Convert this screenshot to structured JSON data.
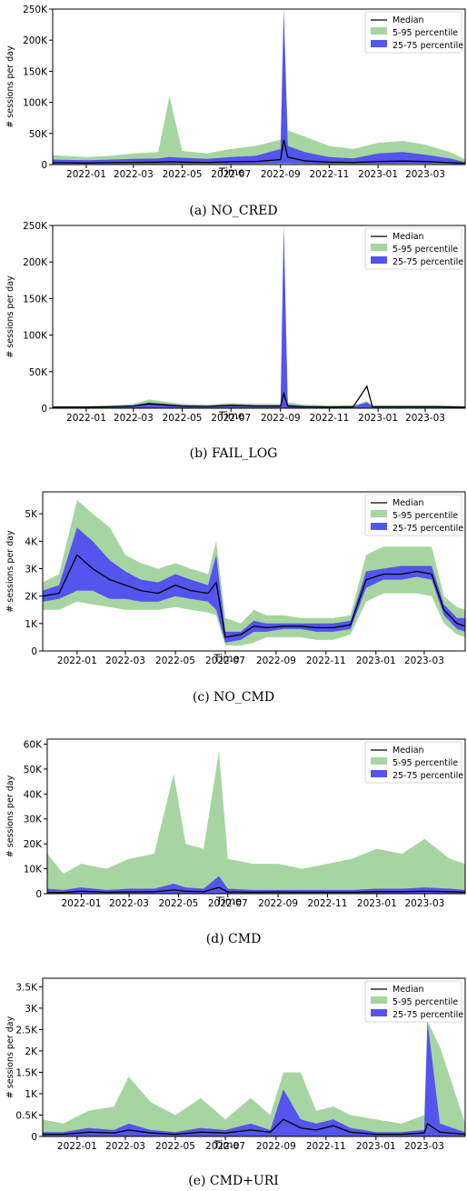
{
  "chart_data": [
    {
      "type": "area",
      "caption": "(a)  NO_CRED",
      "xlabel": "Time",
      "ylabel": "# sessions per day",
      "ymax": 250000,
      "yticks": [
        0,
        50000,
        100000,
        150000,
        200000,
        250000
      ],
      "ytick_labels": [
        "0",
        "50K",
        "100K",
        "150K",
        "200K",
        "250K"
      ],
      "x_tick_labels": [
        "2022-01",
        "2022-03",
        "2022-05",
        "2022-07",
        "2022-09",
        "2022-11",
        "2023-01",
        "2023-03"
      ],
      "legend": [
        "Median",
        "5-95 percentile",
        "25-75 percentile"
      ],
      "legend_position": "top-right",
      "x_dates": [
        "2021-11-20",
        "2022-01-01",
        "2022-02-01",
        "2022-03-01",
        "2022-04-01",
        "2022-04-15",
        "2022-05-01",
        "2022-06-01",
        "2022-07-01",
        "2022-08-01",
        "2022-09-01",
        "2022-09-05",
        "2022-09-10",
        "2022-10-01",
        "2022-11-01",
        "2022-12-01",
        "2023-01-01",
        "2023-02-01",
        "2023-03-01",
        "2023-04-01",
        "2023-04-20"
      ],
      "series": [
        {
          "name": "5-95 percentile",
          "low": [
            0,
            0,
            0,
            0,
            0,
            0,
            0,
            0,
            0,
            0,
            0,
            0,
            0,
            0,
            0,
            0,
            0,
            0,
            0,
            0,
            0
          ],
          "high": [
            15000,
            12000,
            14000,
            18000,
            20000,
            110000,
            22000,
            18000,
            25000,
            30000,
            40000,
            250000,
            55000,
            45000,
            30000,
            25000,
            35000,
            38000,
            32000,
            20000,
            8000
          ]
        },
        {
          "name": "25-75 percentile",
          "low": [
            1000,
            1000,
            1000,
            1000,
            1000,
            1000,
            1000,
            1000,
            1000,
            1500,
            2000,
            2000,
            2000,
            1500,
            1000,
            1000,
            1500,
            1500,
            1500,
            1000,
            500
          ],
          "high": [
            8000,
            7000,
            8000,
            9000,
            10000,
            12000,
            11000,
            9000,
            12000,
            14000,
            25000,
            250000,
            30000,
            20000,
            12000,
            10000,
            18000,
            20000,
            16000,
            10000,
            4000
          ]
        },
        {
          "name": "Median",
          "values": [
            3000,
            2500,
            3000,
            3500,
            4000,
            4500,
            4000,
            3500,
            4500,
            5000,
            8000,
            40000,
            12000,
            6000,
            4000,
            3500,
            5000,
            5500,
            5000,
            3000,
            2000
          ]
        }
      ]
    },
    {
      "type": "area",
      "caption": "(b)  FAIL_LOG",
      "xlabel": "Time",
      "ylabel": "# sessions per day",
      "ymax": 250000,
      "yticks": [
        0,
        50000,
        100000,
        150000,
        200000,
        250000
      ],
      "ytick_labels": [
        "0",
        "50K",
        "100K",
        "150K",
        "200K",
        "250K"
      ],
      "x_tick_labels": [
        "2022-01",
        "2022-03",
        "2022-05",
        "2022-07",
        "2022-09",
        "2022-11",
        "2023-01",
        "2023-03"
      ],
      "legend": [
        "Median",
        "5-95 percentile",
        "25-75 percentile"
      ],
      "legend_position": "top-right",
      "x_dates": [
        "2021-11-20",
        "2022-01-01",
        "2022-02-01",
        "2022-03-01",
        "2022-03-20",
        "2022-05-01",
        "2022-06-01",
        "2022-07-01",
        "2022-08-01",
        "2022-09-01",
        "2022-09-05",
        "2022-09-10",
        "2022-10-01",
        "2022-11-01",
        "2022-12-01",
        "2022-12-18",
        "2022-12-25",
        "2023-01-15",
        "2023-02-15",
        "2023-03-15",
        "2023-04-20"
      ],
      "series": [
        {
          "name": "5-95 percentile",
          "low": [
            0,
            0,
            0,
            0,
            0,
            0,
            0,
            0,
            0,
            0,
            0,
            0,
            0,
            0,
            0,
            0,
            0,
            0,
            0,
            0,
            0
          ],
          "high": [
            3000,
            3000,
            4000,
            6000,
            12000,
            6000,
            5000,
            7000,
            6000,
            6000,
            250000,
            8000,
            5000,
            4000,
            4000,
            10000,
            4000,
            4000,
            4000,
            4000,
            3000
          ]
        },
        {
          "name": "25-75 percentile",
          "low": [
            500,
            500,
            500,
            500,
            500,
            500,
            500,
            500,
            500,
            500,
            500,
            500,
            500,
            500,
            500,
            500,
            500,
            500,
            500,
            500,
            500
          ],
          "high": [
            2000,
            2000,
            2500,
            4000,
            8000,
            4000,
            3000,
            5000,
            4000,
            4000,
            250000,
            5000,
            3000,
            2500,
            2500,
            8000,
            2500,
            2500,
            2500,
            2500,
            2000
          ]
        },
        {
          "name": "Median",
          "values": [
            1500,
            1500,
            2000,
            3000,
            6000,
            3000,
            2500,
            4000,
            3000,
            3000,
            20000,
            3000,
            2000,
            1800,
            2000,
            30000,
            2000,
            2000,
            2000,
            2000,
            1500
          ]
        }
      ]
    },
    {
      "type": "area",
      "caption": "(c)  NO_CMD",
      "xlabel": "Time",
      "ylabel": "# sessions per day",
      "ymax": 5800,
      "yticks": [
        0,
        1000,
        2000,
        3000,
        4000,
        5000
      ],
      "ytick_labels": [
        "0",
        "1K",
        "2K",
        "3K",
        "4K",
        "5K"
      ],
      "x_tick_labels": [
        "2022-01",
        "2022-03",
        "2022-05",
        "2022-07",
        "2022-09",
        "2022-11",
        "2023-01",
        "2023-03"
      ],
      "legend": [
        "Median",
        "5-95 percentile",
        "25-75 percentile"
      ],
      "legend_position": "top-right",
      "x_dates": [
        "2021-11-20",
        "2021-12-10",
        "2022-01-01",
        "2022-01-20",
        "2022-02-10",
        "2022-03-01",
        "2022-03-20",
        "2022-04-10",
        "2022-05-01",
        "2022-05-20",
        "2022-06-10",
        "2022-06-20",
        "2022-07-01",
        "2022-07-20",
        "2022-08-05",
        "2022-08-20",
        "2022-09-10",
        "2022-10-01",
        "2022-10-20",
        "2022-11-10",
        "2022-12-01",
        "2022-12-20",
        "2023-01-10",
        "2023-02-01",
        "2023-02-20",
        "2023-03-10",
        "2023-03-25",
        "2023-04-10",
        "2023-04-20"
      ],
      "series": [
        {
          "name": "5-95 percentile",
          "low": [
            1500,
            1500,
            1800,
            1700,
            1600,
            1500,
            1500,
            1500,
            1600,
            1500,
            1400,
            1300,
            200,
            200,
            300,
            500,
            500,
            500,
            400,
            400,
            600,
            1800,
            2100,
            2100,
            2100,
            2000,
            1000,
            600,
            500
          ],
          "high": [
            2500,
            2800,
            5500,
            5000,
            4500,
            3500,
            3200,
            3000,
            3200,
            3000,
            2800,
            4000,
            1200,
            1000,
            1500,
            1300,
            1300,
            1200,
            1200,
            1200,
            1300,
            3500,
            3800,
            3800,
            3800,
            3800,
            2000,
            1600,
            1500
          ]
        },
        {
          "name": "25-75 percentile",
          "low": [
            1800,
            1900,
            2200,
            2200,
            1900,
            1900,
            1800,
            1800,
            2000,
            1900,
            1800,
            1500,
            300,
            400,
            700,
            700,
            800,
            800,
            700,
            700,
            800,
            2300,
            2600,
            2600,
            2700,
            2600,
            1300,
            800,
            700
          ],
          "high": [
            2200,
            2400,
            4500,
            4000,
            3300,
            2900,
            2600,
            2500,
            2800,
            2600,
            2400,
            3500,
            700,
            700,
            1100,
            1000,
            1000,
            1000,
            1000,
            1000,
            1100,
            2900,
            3000,
            3100,
            3100,
            3100,
            1700,
            1200,
            1200
          ]
        },
        {
          "name": "Median",
          "values": [
            2000,
            2100,
            3500,
            3000,
            2600,
            2400,
            2200,
            2100,
            2400,
            2200,
            2100,
            2500,
            500,
            600,
            900,
            850,
            900,
            900,
            850,
            850,
            950,
            2600,
            2800,
            2800,
            2900,
            2800,
            1500,
            1000,
            900
          ]
        }
      ]
    },
    {
      "type": "area",
      "caption": "(d)  CMD",
      "xlabel": "Time",
      "ylabel": "# sessions per day",
      "ymax": 62000,
      "yticks": [
        0,
        10000,
        20000,
        30000,
        40000,
        50000,
        60000
      ],
      "ytick_labels": [
        "0",
        "10K",
        "20K",
        "30K",
        "40K",
        "50K",
        "60K"
      ],
      "x_tick_labels": [
        "2022-01",
        "2022-03",
        "2022-05",
        "2022-07",
        "2022-09",
        "2022-11",
        "2023-01",
        "2023-03"
      ],
      "legend": [
        "Median",
        "5-95 percentile",
        "25-75 percentile"
      ],
      "legend_position": "top-right",
      "x_dates": [
        "2021-11-20",
        "2021-12-10",
        "2022-01-01",
        "2022-02-01",
        "2022-03-01",
        "2022-04-01",
        "2022-04-25",
        "2022-05-10",
        "2022-06-01",
        "2022-06-20",
        "2022-07-01",
        "2022-08-01",
        "2022-09-01",
        "2022-10-01",
        "2022-11-01",
        "2022-12-01",
        "2023-01-01",
        "2023-02-01",
        "2023-03-01",
        "2023-04-01",
        "2023-04-20"
      ],
      "series": [
        {
          "name": "5-95 percentile",
          "low": [
            0,
            0,
            0,
            0,
            0,
            0,
            0,
            0,
            0,
            0,
            0,
            0,
            0,
            0,
            0,
            0,
            0,
            0,
            0,
            0,
            0
          ],
          "high": [
            16000,
            8000,
            12000,
            10000,
            14000,
            16000,
            48000,
            20000,
            18000,
            57000,
            14000,
            12000,
            12000,
            10000,
            12000,
            14000,
            18000,
            16000,
            22000,
            14000,
            12000
          ]
        },
        {
          "name": "25-75 percentile",
          "low": [
            0,
            0,
            0,
            0,
            0,
            0,
            0,
            0,
            0,
            0,
            0,
            0,
            0,
            0,
            0,
            0,
            0,
            0,
            0,
            0,
            0
          ],
          "high": [
            2000,
            1500,
            2500,
            1500,
            2000,
            2000,
            4000,
            2500,
            2000,
            7000,
            2000,
            1500,
            1500,
            1500,
            1500,
            1500,
            2000,
            2000,
            2500,
            2000,
            1500
          ]
        },
        {
          "name": "Median",
          "values": [
            500,
            500,
            1000,
            600,
            700,
            800,
            1500,
            1000,
            800,
            2500,
            700,
            600,
            700,
            600,
            600,
            600,
            800,
            800,
            1000,
            800,
            600
          ]
        }
      ]
    },
    {
      "type": "area",
      "caption": "(e)  CMD+URI",
      "xlabel": "Time",
      "ylabel": "# sessions per day",
      "ymax": 3700,
      "yticks": [
        0,
        500,
        1000,
        1500,
        2000,
        2500,
        3000,
        3500
      ],
      "ytick_labels": [
        "0",
        "0.5K",
        "1K",
        "1.5K",
        "2K",
        "2.5K",
        "3K",
        "3.5K"
      ],
      "x_tick_labels": [
        "2022-01",
        "2022-03",
        "2022-05",
        "2022-07",
        "2022-09",
        "2022-11",
        "2023-01",
        "2023-03"
      ],
      "legend": [
        "Median",
        "5-95 percentile",
        "25-75 percentile"
      ],
      "legend_position": "top-right",
      "x_dates": [
        "2021-11-20",
        "2021-12-15",
        "2022-01-15",
        "2022-02-15",
        "2022-03-05",
        "2022-04-01",
        "2022-05-01",
        "2022-06-01",
        "2022-07-01",
        "2022-08-01",
        "2022-08-25",
        "2022-09-10",
        "2022-10-01",
        "2022-10-20",
        "2022-11-10",
        "2022-12-01",
        "2023-01-01",
        "2023-02-01",
        "2023-03-01",
        "2023-03-05",
        "2023-03-20",
        "2023-04-20"
      ],
      "series": [
        {
          "name": "5-95 percentile",
          "low": [
            0,
            0,
            0,
            0,
            0,
            0,
            0,
            0,
            0,
            0,
            0,
            0,
            0,
            0,
            0,
            0,
            0,
            0,
            0,
            0,
            0,
            0
          ],
          "high": [
            400,
            300,
            600,
            700,
            1400,
            800,
            500,
            900,
            400,
            900,
            500,
            1500,
            1500,
            600,
            700,
            500,
            400,
            300,
            500,
            2700,
            2100,
            300
          ]
        },
        {
          "name": "25-75 percentile",
          "low": [
            0,
            0,
            0,
            0,
            0,
            0,
            0,
            0,
            0,
            0,
            0,
            0,
            0,
            0,
            0,
            0,
            0,
            0,
            0,
            0,
            0,
            0
          ],
          "high": [
            100,
            100,
            200,
            150,
            300,
            150,
            100,
            200,
            150,
            300,
            150,
            1100,
            400,
            300,
            400,
            200,
            100,
            100,
            150,
            2700,
            300,
            100
          ]
        },
        {
          "name": "Median",
          "values": [
            50,
            50,
            100,
            80,
            150,
            80,
            50,
            100,
            80,
            150,
            100,
            400,
            200,
            150,
            250,
            100,
            50,
            50,
            80,
            300,
            100,
            50
          ]
        }
      ]
    }
  ]
}
